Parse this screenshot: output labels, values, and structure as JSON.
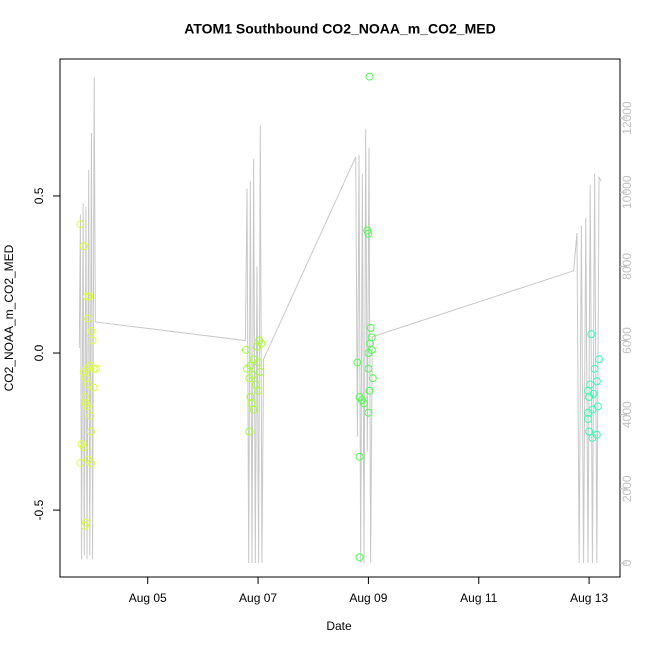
{
  "chart_data": {
    "type": "scatter",
    "title": "ATOM1 Southbound CO2_NOAA_m_CO2_MED",
    "x_label": "Date",
    "y_label": "CO2_NOAA_m_CO2_MED",
    "xlim": [
      3.41,
      13.56
    ],
    "ylim": [
      -0.713,
      0.936
    ],
    "y2lim": [
      -378,
      13592
    ],
    "xticks": [
      {
        "value": 5,
        "label": "Aug 05"
      },
      {
        "value": 7,
        "label": "Aug 07"
      },
      {
        "value": 9,
        "label": "Aug 09"
      },
      {
        "value": 11,
        "label": "Aug 11"
      },
      {
        "value": 13,
        "label": "Aug 13"
      }
    ],
    "yticks": [
      -0.5,
      {
        "value": 0,
        "label": "0.0"
      },
      0.5
    ],
    "y2ticks": [
      0,
      2000,
      4000,
      6000,
      8000,
      10000,
      12000
    ],
    "series": [
      {
        "color": "#ddff33",
        "x": [
          3.78,
          3.84,
          3.9,
          3.94,
          3.92,
          3.98,
          4.0,
          3.84,
          3.9,
          3.96,
          4.02,
          4.06,
          3.88,
          3.92,
          4.02,
          3.86,
          3.88,
          3.9,
          3.96,
          3.97,
          3.8,
          3.84,
          3.92,
          3.97,
          3.78,
          3.88,
          3.86
        ],
        "values": [
          0.41,
          0.34,
          0.18,
          0.18,
          0.11,
          0.07,
          0.04,
          -0.06,
          -0.05,
          -0.04,
          -0.05,
          -0.05,
          -0.08,
          -0.1,
          -0.11,
          -0.14,
          -0.16,
          -0.17,
          -0.2,
          -0.25,
          -0.29,
          -0.3,
          -0.34,
          -0.35,
          -0.35,
          -0.54,
          -0.55
        ]
      },
      {
        "color": "#a6ff33",
        "x": [
          7.02,
          7.06,
          6.98,
          6.78,
          6.92,
          7.0,
          6.86,
          6.8,
          7.04,
          6.9,
          6.84,
          6.96,
          7.0,
          6.86,
          6.88,
          6.92,
          6.84
        ],
        "values": [
          0.04,
          0.03,
          0.02,
          0.01,
          -0.02,
          -0.03,
          -0.04,
          -0.05,
          -0.06,
          -0.07,
          -0.08,
          -0.1,
          -0.12,
          -0.14,
          -0.16,
          -0.18,
          -0.25
        ]
      },
      {
        "color": "#4dff4d",
        "x": [
          9.02,
          8.98,
          9.0,
          9.04,
          9.06,
          9.03,
          9.06,
          9.0,
          8.8,
          9.0,
          9.08,
          9.02,
          8.84,
          8.88,
          8.92,
          9.0,
          8.84,
          8.84
        ],
        "values": [
          0.88,
          0.39,
          0.38,
          0.08,
          0.05,
          0.03,
          0.01,
          0.0,
          -0.03,
          -0.05,
          -0.08,
          -0.12,
          -0.14,
          -0.15,
          -0.16,
          -0.19,
          -0.33,
          -0.65
        ]
      },
      {
        "color": "#33ffb3",
        "x": [
          13.04,
          13.18,
          13.1,
          13.14,
          13.02,
          12.98,
          13.08,
          13.0,
          13.16,
          13.06,
          12.98,
          12.98,
          13.0,
          13.14,
          13.06
        ],
        "values": [
          0.06,
          -0.02,
          -0.05,
          -0.09,
          -0.1,
          -0.12,
          -0.13,
          -0.14,
          -0.17,
          -0.18,
          -0.19,
          -0.21,
          -0.25,
          -0.26,
          -0.27
        ]
      },
      {
        "color": "#c8c8c8",
        "axis": "y2",
        "style": "line",
        "x": [
          3.76,
          3.78,
          3.8,
          3.83,
          3.85,
          3.88,
          3.9,
          3.93,
          3.95,
          3.98,
          4.0,
          4.03,
          4.05,
          6.77,
          6.8,
          6.83,
          6.86,
          6.89,
          6.92,
          6.95,
          6.98,
          7.01,
          7.04,
          7.07,
          7.1,
          8.77,
          8.8,
          8.83,
          8.86,
          8.89,
          8.92,
          8.95,
          8.98,
          9.01,
          9.04,
          9.07,
          12.72,
          12.78,
          12.82,
          12.86,
          12.9,
          12.94,
          12.98,
          13.02,
          13.06,
          13.1,
          13.14,
          13.18,
          13.22
        ],
        "values": [
          5800,
          9400,
          100,
          9700,
          200,
          9600,
          100,
          10600,
          200,
          11600,
          100,
          13100,
          6500,
          6000,
          10100,
          0,
          10300,
          0,
          10900,
          0,
          8000,
          0,
          11800,
          0,
          5500,
          10950,
          3400,
          11000,
          0,
          10500,
          0,
          11700,
          3000,
          11200,
          0,
          6100,
          7880,
          8900,
          0,
          9100,
          0,
          9300,
          0,
          10200,
          0,
          10500,
          0,
          10400,
          10300
        ]
      }
    ]
  }
}
